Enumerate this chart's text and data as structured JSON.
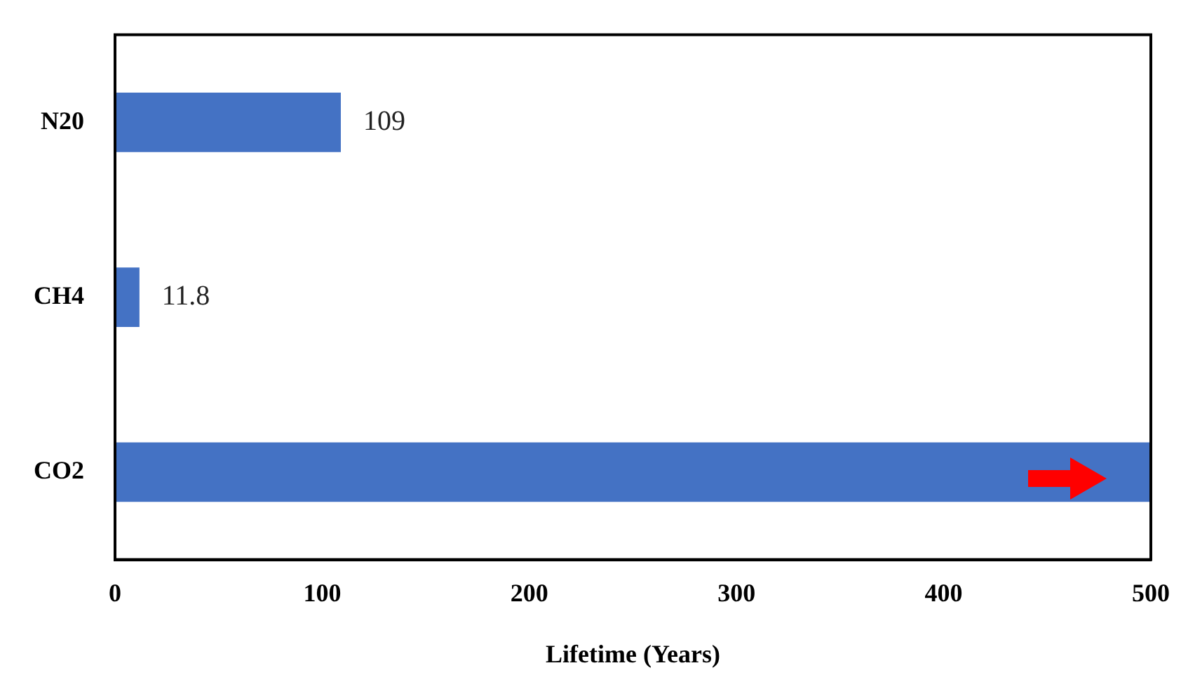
{
  "chart_data": {
    "type": "bar",
    "orientation": "horizontal",
    "xlabel": "Lifetime (Years)",
    "categories": [
      "N20",
      "CH4",
      "CO2"
    ],
    "values": [
      109,
      11.8,
      500
    ],
    "value_labels": [
      "109",
      "11.8",
      null
    ],
    "color": "#4472c4",
    "xlim": [
      0,
      500
    ],
    "xticks": [
      0,
      100,
      200,
      300,
      400,
      500
    ],
    "grid": false,
    "legend": false
  }
}
